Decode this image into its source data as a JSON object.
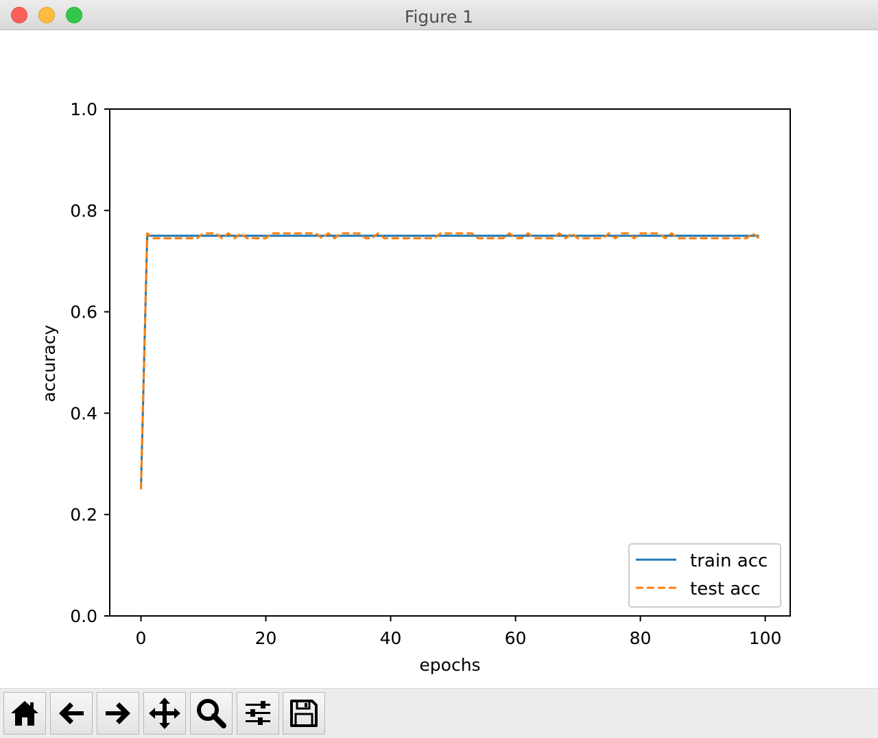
{
  "window": {
    "title": "Figure 1"
  },
  "toolbar": {
    "buttons": [
      {
        "name": "home-icon"
      },
      {
        "name": "back-arrow-icon"
      },
      {
        "name": "forward-arrow-icon"
      },
      {
        "name": "pan-icon"
      },
      {
        "name": "zoom-icon"
      },
      {
        "name": "configure-subplots-icon"
      },
      {
        "name": "save-icon"
      }
    ]
  },
  "chart_data": {
    "type": "line",
    "title": "",
    "xlabel": "epochs",
    "ylabel": "accuracy",
    "xlim": [
      -5,
      104
    ],
    "ylim": [
      0,
      1.0
    ],
    "xticks": [
      0,
      20,
      40,
      60,
      80,
      100
    ],
    "xtick_labels": [
      "0",
      "20",
      "40",
      "60",
      "80",
      "100"
    ],
    "yticks": [
      0.0,
      0.2,
      0.4,
      0.6,
      0.8,
      1.0
    ],
    "ytick_labels": [
      "0.0",
      "0.2",
      "0.4",
      "0.6",
      "0.8",
      "1.0"
    ],
    "grid": false,
    "legend_position": "lower-right",
    "series": [
      {
        "name": "train acc",
        "color": "#1f77b4",
        "style": "solid",
        "x": [
          0,
          1,
          2,
          3,
          4,
          5,
          6,
          7,
          8,
          9,
          10,
          11,
          12,
          13,
          14,
          15,
          16,
          17,
          18,
          19,
          20,
          21,
          22,
          23,
          24,
          25,
          26,
          27,
          28,
          29,
          30,
          31,
          32,
          33,
          34,
          35,
          36,
          37,
          38,
          39,
          40,
          41,
          42,
          43,
          44,
          45,
          46,
          47,
          48,
          49,
          50,
          51,
          52,
          53,
          54,
          55,
          56,
          57,
          58,
          59,
          60,
          61,
          62,
          63,
          64,
          65,
          66,
          67,
          68,
          69,
          70,
          71,
          72,
          73,
          74,
          75,
          76,
          77,
          78,
          79,
          80,
          81,
          82,
          83,
          84,
          85,
          86,
          87,
          88,
          89,
          90,
          91,
          92,
          93,
          94,
          95,
          96,
          97,
          98,
          99
        ],
        "y": [
          0.25,
          0.75,
          0.75,
          0.75,
          0.75,
          0.75,
          0.75,
          0.75,
          0.75,
          0.75,
          0.75,
          0.75,
          0.75,
          0.75,
          0.75,
          0.75,
          0.75,
          0.75,
          0.75,
          0.75,
          0.75,
          0.75,
          0.75,
          0.75,
          0.75,
          0.75,
          0.75,
          0.75,
          0.75,
          0.75,
          0.75,
          0.75,
          0.75,
          0.75,
          0.75,
          0.75,
          0.75,
          0.75,
          0.75,
          0.75,
          0.75,
          0.75,
          0.75,
          0.75,
          0.75,
          0.75,
          0.75,
          0.75,
          0.75,
          0.75,
          0.75,
          0.75,
          0.75,
          0.75,
          0.75,
          0.75,
          0.75,
          0.75,
          0.75,
          0.75,
          0.75,
          0.75,
          0.75,
          0.75,
          0.75,
          0.75,
          0.75,
          0.75,
          0.75,
          0.75,
          0.75,
          0.75,
          0.75,
          0.75,
          0.75,
          0.75,
          0.75,
          0.75,
          0.75,
          0.75,
          0.75,
          0.75,
          0.75,
          0.75,
          0.75,
          0.75,
          0.75,
          0.75,
          0.75,
          0.75,
          0.75,
          0.75,
          0.75,
          0.75,
          0.75,
          0.75,
          0.75,
          0.75,
          0.75,
          0.75
        ]
      },
      {
        "name": "test acc",
        "color": "#ff7f0e",
        "style": "dashed",
        "x": [
          0,
          1,
          2,
          3,
          4,
          5,
          6,
          7,
          8,
          9,
          10,
          11,
          12,
          13,
          14,
          15,
          16,
          17,
          18,
          19,
          20,
          21,
          22,
          23,
          24,
          25,
          26,
          27,
          28,
          29,
          30,
          31,
          32,
          33,
          34,
          35,
          36,
          37,
          38,
          39,
          40,
          41,
          42,
          43,
          44,
          45,
          46,
          47,
          48,
          49,
          50,
          51,
          52,
          53,
          54,
          55,
          56,
          57,
          58,
          59,
          60,
          61,
          62,
          63,
          64,
          65,
          66,
          67,
          68,
          69,
          70,
          71,
          72,
          73,
          74,
          75,
          76,
          77,
          78,
          79,
          80,
          81,
          82,
          83,
          84,
          85,
          86,
          87,
          88,
          89,
          90,
          91,
          92,
          93,
          94,
          95,
          96,
          97,
          98,
          99
        ],
        "y": [
          0.25,
          0.755,
          0.745,
          0.745,
          0.745,
          0.745,
          0.745,
          0.745,
          0.745,
          0.745,
          0.755,
          0.755,
          0.755,
          0.745,
          0.755,
          0.745,
          0.755,
          0.745,
          0.745,
          0.745,
          0.745,
          0.755,
          0.755,
          0.755,
          0.755,
          0.755,
          0.755,
          0.755,
          0.755,
          0.745,
          0.755,
          0.745,
          0.755,
          0.755,
          0.755,
          0.755,
          0.745,
          0.745,
          0.755,
          0.745,
          0.745,
          0.745,
          0.745,
          0.745,
          0.745,
          0.745,
          0.745,
          0.745,
          0.755,
          0.755,
          0.755,
          0.755,
          0.755,
          0.755,
          0.745,
          0.745,
          0.745,
          0.745,
          0.745,
          0.755,
          0.745,
          0.745,
          0.755,
          0.745,
          0.745,
          0.745,
          0.745,
          0.755,
          0.745,
          0.755,
          0.745,
          0.745,
          0.745,
          0.745,
          0.745,
          0.755,
          0.745,
          0.755,
          0.755,
          0.745,
          0.755,
          0.755,
          0.755,
          0.755,
          0.745,
          0.755,
          0.745,
          0.745,
          0.745,
          0.745,
          0.745,
          0.745,
          0.745,
          0.745,
          0.745,
          0.745,
          0.745,
          0.745,
          0.755,
          0.745
        ]
      }
    ]
  }
}
